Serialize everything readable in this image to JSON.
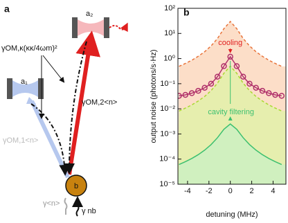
{
  "diagram": {
    "panel_label": "a",
    "nodes": [
      {
        "label": "a₁"
      },
      {
        "label": "a₂"
      },
      {
        "label": "b"
      }
    ],
    "rates": [
      "γOM,κ(κκ/4ωm)²",
      "γOM,2<n>",
      "γOM,1<n>",
      "γ<n>",
      "γ nb"
    ]
  },
  "chart_data": {
    "type": "line",
    "panel_label": "b",
    "x_label": "detuning (MHz)",
    "y_label": "output noise (photons/s·Hz)",
    "annotations": [
      "cooling",
      "cavity filtering"
    ],
    "log_y": true,
    "xlim": [
      -4.9,
      5.2
    ],
    "ylim": [
      1e-05,
      100
    ],
    "xticks": [
      -4,
      -2,
      0,
      2,
      4
    ],
    "yticks": [
      {
        "value": 100,
        "label": "10²"
      },
      {
        "value": 10,
        "label": "10¹"
      },
      {
        "value": 1,
        "label": "10⁰"
      },
      {
        "value": 0.1,
        "label": "10⁻¹"
      },
      {
        "value": 0.01,
        "label": "10⁻²"
      },
      {
        "value": 0.001,
        "label": "10⁻³"
      },
      {
        "value": 0.0001,
        "label": "10⁻⁴"
      },
      {
        "value": 1e-05,
        "label": "10⁻⁵"
      }
    ],
    "x": [
      -4.8,
      -4.2,
      -3.6,
      -3.0,
      -2.4,
      -1.8,
      -1.2,
      -0.6,
      0,
      0.6,
      1.2,
      1.8,
      2.4,
      3.0,
      3.6,
      4.2,
      4.8
    ],
    "series": [
      {
        "color": "#e8733a",
        "style": "dashed",
        "fill": "#fbd3b6",
        "values": [
          0.49,
          0.64,
          0.86,
          1.23,
          1.88,
          3.18,
          6.3,
          15.5,
          30,
          15.5,
          6.3,
          3.18,
          1.88,
          1.23,
          0.86,
          0.64,
          0.49
        ]
      },
      {
        "color": "#b0306a",
        "style": "markers",
        "values": [
          0.033,
          0.036,
          0.042,
          0.052,
          0.069,
          0.1,
          0.19,
          0.5,
          1.19,
          0.5,
          0.19,
          0.1,
          0.069,
          0.052,
          0.042,
          0.036,
          0.033
        ]
      },
      {
        "color": "#a8d830",
        "style": "dashed",
        "fill": "#dff3a6",
        "values": [
          0.0082,
          0.0107,
          0.0143,
          0.0205,
          0.031,
          0.053,
          0.105,
          0.26,
          0.5,
          0.26,
          0.105,
          0.053,
          0.031,
          0.0205,
          0.0143,
          0.0107,
          0.0082
        ]
      },
      {
        "color": "#3cc070",
        "style": "solid",
        "fill": "#c8f0c4",
        "values": [
          6.1e-05,
          7.9e-05,
          0.000106,
          0.00015,
          0.000227,
          0.000377,
          0.00071,
          0.00154,
          0.0025,
          0.00154,
          0.00071,
          0.000377,
          0.000227,
          0.00015,
          0.000106,
          7.9e-05,
          6.1e-05
        ]
      }
    ]
  }
}
